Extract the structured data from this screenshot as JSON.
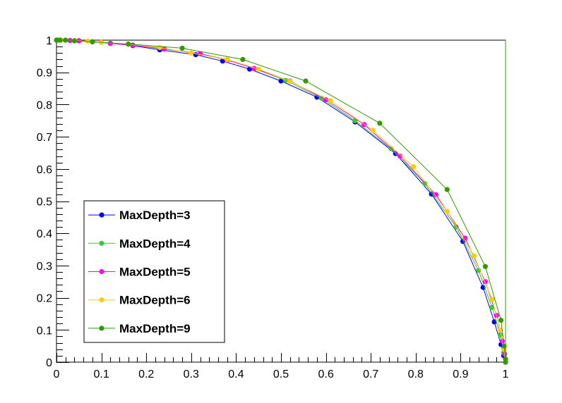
{
  "chart_data": {
    "type": "line",
    "title": "",
    "xlabel": "",
    "ylabel": "",
    "xlim": [
      0,
      1
    ],
    "ylim": [
      0,
      1
    ],
    "x_ticks": [
      "0",
      "0.1",
      "0.2",
      "0.3",
      "0.4",
      "0.5",
      "0.6",
      "0.7",
      "0.8",
      "0.9",
      "1"
    ],
    "y_ticks": [
      "0",
      "0.1",
      "0.2",
      "0.3",
      "0.4",
      "0.5",
      "0.6",
      "0.7",
      "0.8",
      "0.9",
      "1"
    ],
    "grid": false,
    "legend_position": "bottom-left",
    "series": [
      {
        "name": "MaxDepth=3",
        "color": "#0000ff",
        "points": [
          [
            0,
            1
          ],
          [
            0.01,
            1
          ],
          [
            0.03,
            0.999
          ],
          [
            0.05,
            0.998
          ],
          [
            0.08,
            0.995
          ],
          [
            0.12,
            0.99
          ],
          [
            0.17,
            0.983
          ],
          [
            0.23,
            0.97
          ],
          [
            0.31,
            0.955
          ],
          [
            0.37,
            0.935
          ],
          [
            0.43,
            0.91
          ],
          [
            0.5,
            0.873
          ],
          [
            0.58,
            0.823
          ],
          [
            0.665,
            0.746
          ],
          [
            0.755,
            0.648
          ],
          [
            0.835,
            0.522
          ],
          [
            0.905,
            0.375
          ],
          [
            0.95,
            0.232
          ],
          [
            0.975,
            0.125
          ],
          [
            0.99,
            0.055
          ],
          [
            0.996,
            0.02
          ],
          [
            1,
            0
          ],
          [
            1,
            1
          ]
        ]
      },
      {
        "name": "MaxDepth=4",
        "color": "#33cc33",
        "points": [
          [
            0,
            1
          ],
          [
            0.01,
            1
          ],
          [
            0.03,
            0.999
          ],
          [
            0.05,
            0.998
          ],
          [
            0.08,
            0.995
          ],
          [
            0.12,
            0.99
          ],
          [
            0.17,
            0.985
          ],
          [
            0.24,
            0.972
          ],
          [
            0.32,
            0.958
          ],
          [
            0.38,
            0.94
          ],
          [
            0.44,
            0.912
          ],
          [
            0.51,
            0.875
          ],
          [
            0.59,
            0.82
          ],
          [
            0.665,
            0.75
          ],
          [
            0.745,
            0.663
          ],
          [
            0.82,
            0.555
          ],
          [
            0.89,
            0.42
          ],
          [
            0.94,
            0.285
          ],
          [
            0.97,
            0.17
          ],
          [
            0.988,
            0.085
          ],
          [
            0.996,
            0.03
          ],
          [
            1,
            0
          ],
          [
            1,
            1
          ]
        ]
      },
      {
        "name": "MaxDepth=5",
        "color": "#ff00ff",
        "points": [
          [
            0,
            1
          ],
          [
            0.01,
            1
          ],
          [
            0.03,
            0.999
          ],
          [
            0.05,
            0.998
          ],
          [
            0.08,
            0.995
          ],
          [
            0.12,
            0.99
          ],
          [
            0.17,
            0.984
          ],
          [
            0.24,
            0.973
          ],
          [
            0.32,
            0.958
          ],
          [
            0.38,
            0.938
          ],
          [
            0.44,
            0.912
          ],
          [
            0.52,
            0.873
          ],
          [
            0.6,
            0.815
          ],
          [
            0.685,
            0.738
          ],
          [
            0.765,
            0.64
          ],
          [
            0.845,
            0.52
          ],
          [
            0.91,
            0.385
          ],
          [
            0.955,
            0.25
          ],
          [
            0.98,
            0.145
          ],
          [
            0.993,
            0.065
          ],
          [
            0.998,
            0.025
          ],
          [
            1,
            0
          ],
          [
            1,
            1
          ]
        ]
      },
      {
        "name": "MaxDepth=6",
        "color": "#ffcc00",
        "points": [
          [
            0,
            1
          ],
          [
            0.01,
            1
          ],
          [
            0.04,
            0.999
          ],
          [
            0.07,
            0.997
          ],
          [
            0.1,
            0.993
          ],
          [
            0.16,
            0.987
          ],
          [
            0.23,
            0.977
          ],
          [
            0.3,
            0.96
          ],
          [
            0.38,
            0.94
          ],
          [
            0.45,
            0.91
          ],
          [
            0.52,
            0.872
          ],
          [
            0.61,
            0.812
          ],
          [
            0.705,
            0.72
          ],
          [
            0.795,
            0.607
          ],
          [
            0.87,
            0.468
          ],
          [
            0.93,
            0.33
          ],
          [
            0.97,
            0.195
          ],
          [
            0.988,
            0.1
          ],
          [
            0.996,
            0.04
          ],
          [
            1,
            0
          ],
          [
            1,
            1
          ]
        ]
      },
      {
        "name": "MaxDepth=9",
        "color": "#339900",
        "points": [
          [
            0,
            1
          ],
          [
            0.003,
            1
          ],
          [
            0.008,
            1
          ],
          [
            0.02,
            1
          ],
          [
            0.04,
            0.998
          ],
          [
            0.08,
            0.995
          ],
          [
            0.16,
            0.988
          ],
          [
            0.28,
            0.975
          ],
          [
            0.415,
            0.94
          ],
          [
            0.555,
            0.873
          ],
          [
            0.72,
            0.742
          ],
          [
            0.87,
            0.536
          ],
          [
            0.955,
            0.297
          ],
          [
            0.99,
            0.13
          ],
          [
            0.997,
            0.05
          ],
          [
            1,
            0.01
          ],
          [
            1,
            0
          ],
          [
            1,
            1
          ]
        ]
      }
    ]
  }
}
